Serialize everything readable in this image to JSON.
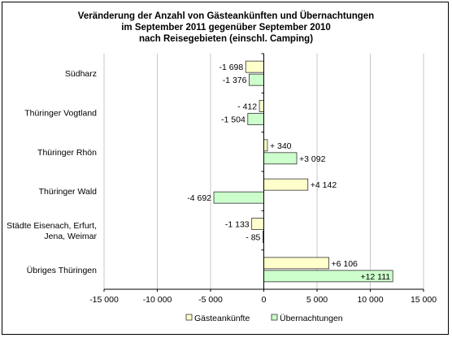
{
  "chart_data": {
    "type": "bar",
    "orientation": "horizontal",
    "title_lines": [
      "Veränderung der Anzahl von Gästeankünften und Übernachtungen",
      "im September 2011 gegenüber September 2010",
      "nach Reisegebieten (einschl. Camping)"
    ],
    "categories": [
      [
        "Südharz"
      ],
      [
        "Thüringer Vogtland"
      ],
      [
        "Thüringer Rhön"
      ],
      [
        "Thüringer Wald"
      ],
      [
        "Städte Eisenach, Erfurt,",
        "Jena, Weimar"
      ],
      [
        "Übriges Thüringen"
      ]
    ],
    "series": [
      {
        "name": "Gästeankünfte",
        "color": "#ffffcc",
        "values": [
          -1698,
          -412,
          340,
          4142,
          -1133,
          6106
        ],
        "labels": [
          "-1 698",
          "- 412",
          "+ 340",
          "+4 142",
          "-1 133",
          "+6 106"
        ]
      },
      {
        "name": "Übernachtungen",
        "color": "#ccffcc",
        "values": [
          -1376,
          -1504,
          3092,
          -4692,
          -85,
          12111
        ],
        "labels": [
          "-1 376",
          "-1 504",
          "+3 092",
          "-4 692",
          "- 85",
          "+12 111"
        ]
      }
    ],
    "xlim": [
      -15000,
      15000
    ],
    "xticks": [
      -15000,
      -10000,
      -5000,
      0,
      5000,
      10000,
      15000
    ],
    "xtick_labels": [
      "-15 000",
      "-10 000",
      "-5 000",
      "0",
      "5 000",
      "10 000",
      "15 000"
    ],
    "grid": true,
    "legend_position": "bottom"
  }
}
